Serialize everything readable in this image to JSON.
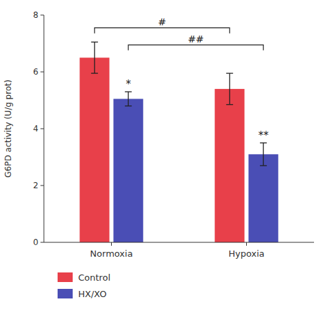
{
  "chart_data": {
    "type": "bar",
    "categories": [
      "Normoxia",
      "Hypoxia"
    ],
    "series": [
      {
        "name": "Control",
        "color": "#e8404a",
        "values": [
          6.5,
          5.4
        ],
        "errors": [
          0.55,
          0.55
        ]
      },
      {
        "name": "HX/XO",
        "color": "#4a4eb5",
        "values": [
          5.05,
          3.1
        ],
        "errors": [
          0.25,
          0.4
        ]
      }
    ],
    "ylabel": "G6PD activity (U/g prot)",
    "ylim": [
      0,
      8
    ],
    "yticks": [
      0,
      2,
      4,
      6,
      8
    ],
    "grid": false,
    "legend": "bottom",
    "annotations": [
      {
        "text": "*",
        "series": "HX/XO",
        "category": "Normoxia"
      },
      {
        "text": "**",
        "series": "HX/XO",
        "category": "Hypoxia"
      }
    ],
    "brackets": [
      {
        "text": "#",
        "y": 7.55,
        "series": "Control"
      },
      {
        "text": "##",
        "y": 6.95,
        "series": "HX/XO"
      }
    ]
  }
}
